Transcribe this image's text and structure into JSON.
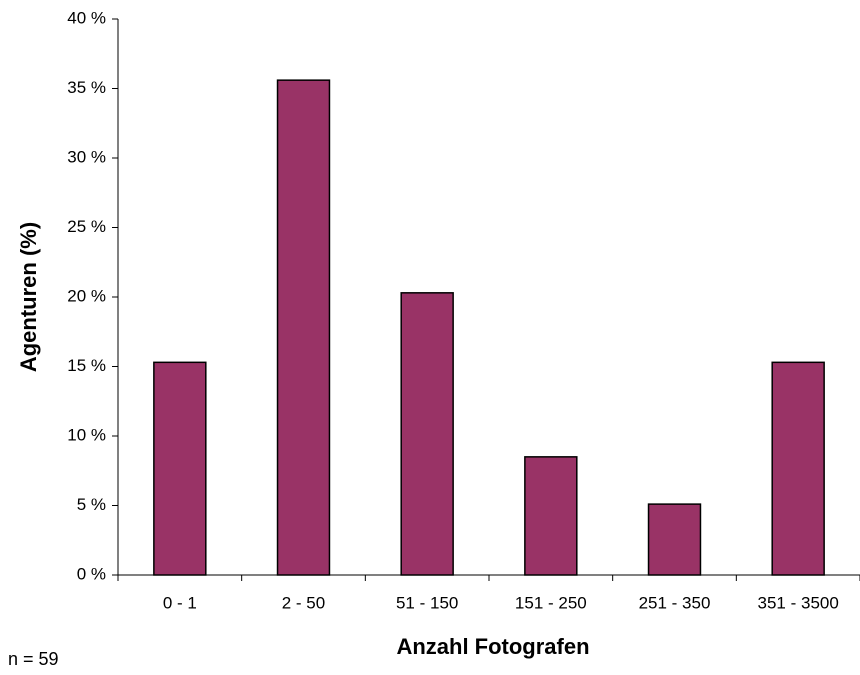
{
  "chart_data": {
    "type": "bar",
    "xlabel": "Anzahl Fotografen",
    "ylabel": "Agenturen (%)",
    "annotation": "n = 59",
    "categories": [
      "0 - 1",
      "2 - 50",
      "51 - 150",
      "151 - 250",
      "251 - 350",
      "351 - 3500"
    ],
    "values": [
      15.3,
      35.6,
      20.3,
      8.5,
      5.1,
      15.3
    ],
    "color": "#993366",
    "ylim": [
      0,
      40
    ],
    "yticks": [
      {
        "value": 0,
        "label": "0 %"
      },
      {
        "value": 5,
        "label": "5 %"
      },
      {
        "value": 10,
        "label": "10 %"
      },
      {
        "value": 15,
        "label": "15 %"
      },
      {
        "value": 20,
        "label": "20 %"
      },
      {
        "value": 25,
        "label": "25 %"
      },
      {
        "value": 30,
        "label": "30 %"
      },
      {
        "value": 35,
        "label": "35 %"
      },
      {
        "value": 40,
        "label": "40 %"
      }
    ],
    "grid": false
  }
}
